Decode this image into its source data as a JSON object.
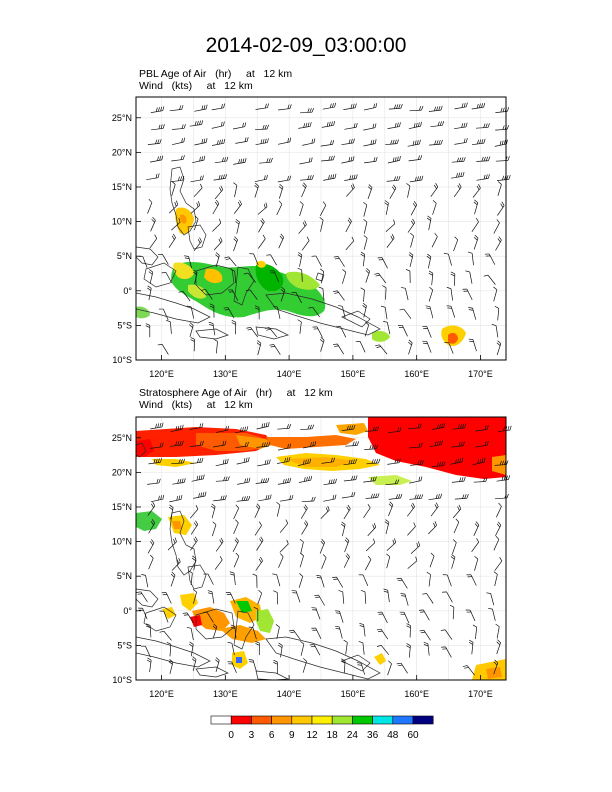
{
  "title": "2014-02-09_03:00:00",
  "panels": [
    {
      "id": "pbl",
      "label_line1": "PBL Age of Air   (hr)     at   12 km",
      "label_line2": "Wind   (kts)     at   12 km"
    },
    {
      "id": "strat",
      "label_line1": "Stratosphere Age of Air   (hr)     at   12 km",
      "label_line2": "Wind   (kts)     at   12 km"
    }
  ],
  "map": {
    "lon_range": [
      116,
      174
    ],
    "lat_range": [
      -10,
      28
    ],
    "lon_ticks": [
      120,
      130,
      140,
      150,
      160,
      170
    ],
    "lat_ticks": [
      25,
      20,
      15,
      10,
      5,
      0,
      -5,
      -10
    ],
    "lon_tick_labels": [
      "120°E",
      "130°E",
      "140°E",
      "150°E",
      "160°E",
      "170°E"
    ],
    "lat_tick_labels": [
      "25°N",
      "20°N",
      "15°N",
      "10°N",
      "5°N",
      "0°",
      "5°S",
      "10°S"
    ]
  },
  "colorbar": {
    "colors": [
      "#ffffff",
      "#ff0000",
      "#ff5a00",
      "#ff9600",
      "#ffc800",
      "#fff000",
      "#a0e632",
      "#00c800",
      "#00e6e6",
      "#1e78ff",
      "#000080"
    ],
    "labels": [
      "0",
      "3",
      "6",
      "9",
      "12",
      "18",
      "24",
      "36",
      "48",
      "60"
    ]
  }
}
